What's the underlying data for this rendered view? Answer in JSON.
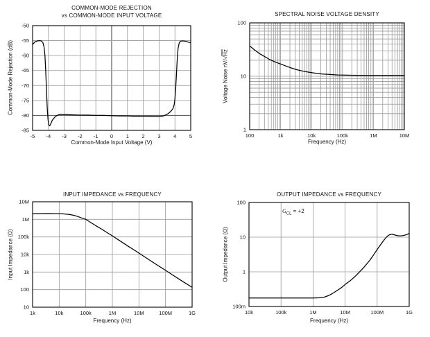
{
  "page": {
    "background": "#ffffff",
    "text_color": "#111111",
    "grid_color": "#979797",
    "curve_color": "#000000"
  },
  "chart_data": [
    {
      "type": "line",
      "title": "COMMON-MODE REJECTION",
      "title_line2": "vs COMMON-MODE INPUT VOLTAGE",
      "xlabel": "Common-Mode Input Voltage (V)",
      "ylabel": "Common-Mode Rejection (dB)",
      "x_scale": "linear",
      "y_scale": "linear",
      "xlim": [
        -5,
        5
      ],
      "ylim": [
        -85,
        -50
      ],
      "grid": "major",
      "minor_grid": false,
      "emphasis_x": [
        0
      ],
      "emphasis_y": [
        -80
      ],
      "x_ticks": [
        {
          "v": -5,
          "l": "-5"
        },
        {
          "v": -4,
          "l": "-4"
        },
        {
          "v": -3,
          "l": "-3"
        },
        {
          "v": -2,
          "l": "-2"
        },
        {
          "v": -1,
          "l": "-1"
        },
        {
          "v": 0,
          "l": "0"
        },
        {
          "v": 1,
          "l": "1"
        },
        {
          "v": 2,
          "l": "2"
        },
        {
          "v": 3,
          "l": "3"
        },
        {
          "v": 4,
          "l": "4"
        },
        {
          "v": 5,
          "l": "5"
        }
      ],
      "y_ticks": [
        {
          "v": -50,
          "l": "-50"
        },
        {
          "v": -55,
          "l": "-55"
        },
        {
          "v": -60,
          "l": "-60"
        },
        {
          "v": -65,
          "l": "-65"
        },
        {
          "v": -70,
          "l": "-70"
        },
        {
          "v": -75,
          "l": "-75"
        },
        {
          "v": -80,
          "l": "-80"
        },
        {
          "v": -85,
          "l": "-85"
        }
      ],
      "points": [
        [
          -5,
          -56.3
        ],
        [
          -4.85,
          -55.4
        ],
        [
          -4.7,
          -55.1
        ],
        [
          -4.55,
          -55.0
        ],
        [
          -4.45,
          -55.1
        ],
        [
          -4.35,
          -55.6
        ],
        [
          -4.28,
          -57
        ],
        [
          -4.22,
          -60
        ],
        [
          -4.17,
          -65
        ],
        [
          -4.12,
          -72
        ],
        [
          -4.07,
          -78
        ],
        [
          -4.02,
          -81.5
        ],
        [
          -3.97,
          -83.2
        ],
        [
          -3.92,
          -83.5
        ],
        [
          -3.85,
          -82.8
        ],
        [
          -3.75,
          -81.6
        ],
        [
          -3.6,
          -80.6
        ],
        [
          -3.45,
          -80.0
        ],
        [
          -3.3,
          -79.7
        ],
        [
          -3.1,
          -79.7
        ],
        [
          -2.5,
          -79.8
        ],
        [
          -2,
          -79.9
        ],
        [
          -1.5,
          -79.9
        ],
        [
          -1,
          -80.0
        ],
        [
          -0.5,
          -80.0
        ],
        [
          0,
          -80.1
        ],
        [
          0.5,
          -80.2
        ],
        [
          1,
          -80.2
        ],
        [
          1.5,
          -80.3
        ],
        [
          2,
          -80.3
        ],
        [
          2.5,
          -80.4
        ],
        [
          3,
          -80.4
        ],
        [
          3.2,
          -80.3
        ],
        [
          3.4,
          -79.9
        ],
        [
          3.6,
          -79.3
        ],
        [
          3.75,
          -78.6
        ],
        [
          3.87,
          -77.8
        ],
        [
          3.95,
          -76.5
        ],
        [
          4.0,
          -74.5
        ],
        [
          4.05,
          -71
        ],
        [
          4.1,
          -66
        ],
        [
          4.15,
          -61
        ],
        [
          4.2,
          -57.5
        ],
        [
          4.27,
          -55.8
        ],
        [
          4.35,
          -55.2
        ],
        [
          4.5,
          -55.1
        ],
        [
          4.65,
          -55.2
        ],
        [
          4.8,
          -55.4
        ],
        [
          4.95,
          -55.7
        ]
      ]
    },
    {
      "type": "line",
      "title": "SPECTRAL NOISE VOLTAGE DENSITY",
      "xlabel": "Frequency (Hz)",
      "ylabel": "Voltage Noise nV/√Hz",
      "ylabel_prefix": "Voltage Noise nV/√",
      "ylabel_overline": "Hz",
      "x_scale": "log",
      "y_scale": "log",
      "xlim": [
        100,
        10000000
      ],
      "ylim": [
        1,
        100
      ],
      "grid": "major+minor",
      "minor_grid": true,
      "x_ticks": [
        {
          "v": 100,
          "l": "100"
        },
        {
          "v": 1000,
          "l": "1k"
        },
        {
          "v": 10000,
          "l": "10k"
        },
        {
          "v": 100000,
          "l": "100k"
        },
        {
          "v": 1000000,
          "l": "1M"
        },
        {
          "v": 10000000,
          "l": "10M"
        }
      ],
      "y_ticks": [
        {
          "v": 100,
          "l": "100"
        },
        {
          "v": 10,
          "l": "10"
        },
        {
          "v": 1,
          "l": "1"
        }
      ],
      "points": [
        [
          100,
          37
        ],
        [
          140,
          31.5
        ],
        [
          200,
          27
        ],
        [
          300,
          23.5
        ],
        [
          450,
          20.5
        ],
        [
          700,
          18.3
        ],
        [
          1000,
          17
        ],
        [
          1500,
          15.5
        ],
        [
          2200,
          14.3
        ],
        [
          3300,
          13.3
        ],
        [
          5000,
          12.6
        ],
        [
          7000,
          12.1
        ],
        [
          10000,
          11.7
        ],
        [
          15000,
          11.3
        ],
        [
          22000,
          11.0
        ],
        [
          40000,
          10.8
        ],
        [
          70000,
          10.6
        ],
        [
          100000,
          10.55
        ],
        [
          200000,
          10.45
        ],
        [
          500000,
          10.4
        ],
        [
          1000000,
          10.4
        ],
        [
          3000000,
          10.4
        ],
        [
          10000000,
          10.4
        ]
      ]
    },
    {
      "type": "line",
      "title": "INPUT IMPEDANCE vs FREQUENCY",
      "xlabel": "Frequency (Hz)",
      "ylabel": "Input Impedance (Ω)",
      "x_scale": "log",
      "y_scale": "log",
      "xlim": [
        1000,
        1000000000
      ],
      "ylim": [
        10,
        10000000
      ],
      "grid": "major",
      "minor_grid": false,
      "x_ticks": [
        {
          "v": 1000,
          "l": "1k"
        },
        {
          "v": 10000,
          "l": "10k"
        },
        {
          "v": 100000,
          "l": "100k"
        },
        {
          "v": 1000000,
          "l": "1M"
        },
        {
          "v": 10000000,
          "l": "10M"
        },
        {
          "v": 100000000,
          "l": "100M"
        },
        {
          "v": 1000000000,
          "l": "1G"
        }
      ],
      "y_ticks": [
        {
          "v": 10000000,
          "l": "10M"
        },
        {
          "v": 1000000,
          "l": "1M"
        },
        {
          "v": 100000,
          "l": "100k"
        },
        {
          "v": 10000,
          "l": "10k"
        },
        {
          "v": 1000,
          "l": "1k"
        },
        {
          "v": 100,
          "l": "100"
        },
        {
          "v": 10,
          "l": "10"
        }
      ],
      "points": [
        [
          1000,
          2100000.0
        ],
        [
          2000,
          2120000.0
        ],
        [
          4000,
          2130000.0
        ],
        [
          8000,
          2100000.0
        ],
        [
          12000,
          2070000.0
        ],
        [
          18000,
          2000000.0
        ],
        [
          25000,
          1880000.0
        ],
        [
          35000,
          1700000.0
        ],
        [
          50000,
          1450000.0
        ],
        [
          70000,
          1200000.0
        ],
        [
          100000,
          1000000.0
        ],
        [
          150000,
          680000.0
        ],
        [
          250000,
          420000.0
        ],
        [
          400000,
          275000.0
        ],
        [
          700000,
          160000.0
        ],
        [
          1000000.0,
          115000.0
        ],
        [
          2000000.0,
          58000.0
        ],
        [
          4000000.0,
          29000.0
        ],
        [
          8000000.0,
          15000.0
        ],
        [
          10000000.0,
          12000.0
        ],
        [
          20000000.0,
          6000.0
        ],
        [
          50000000.0,
          2450.0
        ],
        [
          100000000.0,
          1250.0
        ],
        [
          200000000.0,
          630.0
        ],
        [
          500000000.0,
          260.0
        ],
        [
          1000000000.0,
          135.0
        ]
      ]
    },
    {
      "type": "line",
      "title": "OUTPUT IMPEDANCE vs FREQUENCY",
      "xlabel": "Frequency (Hz)",
      "ylabel": "Output Impedance (Ω)",
      "annotation": {
        "pre": "G",
        "sub": "CL",
        "post": " = +2"
      },
      "x_scale": "log",
      "y_scale": "log",
      "xlim": [
        10000,
        1000000000
      ],
      "ylim": [
        0.1,
        100
      ],
      "grid": "major",
      "minor_grid": false,
      "x_ticks": [
        {
          "v": 10000,
          "l": "10k"
        },
        {
          "v": 100000,
          "l": "100k"
        },
        {
          "v": 1000000,
          "l": "1M"
        },
        {
          "v": 10000000,
          "l": "10M"
        },
        {
          "v": 100000000,
          "l": "100M"
        },
        {
          "v": 1000000000,
          "l": "1G"
        }
      ],
      "y_ticks": [
        {
          "v": 100,
          "l": "100"
        },
        {
          "v": 10,
          "l": "10"
        },
        {
          "v": 1,
          "l": "1"
        },
        {
          "v": 0.1,
          "l": "100m"
        }
      ],
      "points": [
        [
          10000.0,
          0.175
        ],
        [
          30000.0,
          0.175
        ],
        [
          100000.0,
          0.175
        ],
        [
          300000.0,
          0.175
        ],
        [
          600000.0,
          0.175
        ],
        [
          1000000.0,
          0.176
        ],
        [
          1500000.0,
          0.178
        ],
        [
          2200000.0,
          0.185
        ],
        [
          3000000.0,
          0.205
        ],
        [
          4000000.0,
          0.235
        ],
        [
          6000000.0,
          0.3
        ],
        [
          8000000.0,
          0.36
        ],
        [
          10000000.0,
          0.43
        ],
        [
          15000000.0,
          0.57
        ],
        [
          20000000.0,
          0.72
        ],
        [
          30000000.0,
          1.05
        ],
        [
          40000000.0,
          1.4
        ],
        [
          60000000.0,
          2.2
        ],
        [
          80000000.0,
          3.2
        ],
        [
          100000000.0,
          4.4
        ],
        [
          120000000.0,
          5.6
        ],
        [
          150000000.0,
          7.4
        ],
        [
          180000000.0,
          9.2
        ],
        [
          210000000.0,
          10.7
        ],
        [
          240000000.0,
          11.7
        ],
        [
          270000000.0,
          12.1
        ],
        [
          300000000.0,
          12.1
        ],
        [
          340000000.0,
          11.7
        ],
        [
          400000000.0,
          11.2
        ],
        [
          470000000.0,
          10.9
        ],
        [
          550000000.0,
          10.9
        ],
        [
          650000000.0,
          11.1
        ],
        [
          800000000.0,
          11.7
        ],
        [
          900000000.0,
          12.2
        ],
        [
          1000000000.0,
          12.8
        ]
      ]
    }
  ]
}
